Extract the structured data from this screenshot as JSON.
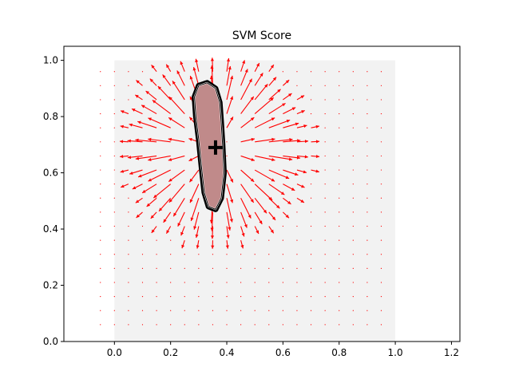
{
  "chart_data": {
    "type": "quiver",
    "title": "SVM Score",
    "xlabel": "",
    "ylabel": "",
    "xlim": [
      -0.18,
      1.23
    ],
    "ylim": [
      0.0,
      1.05
    ],
    "xticks": [
      "0.0",
      "0.2",
      "0.4",
      "0.6",
      "0.8",
      "1.0",
      "1.2"
    ],
    "yticks": [
      "0.0",
      "0.2",
      "0.4",
      "0.6",
      "0.8",
      "1.0"
    ],
    "xtick_values": [
      0.0,
      0.2,
      0.4,
      0.6,
      0.8,
      1.0,
      1.2
    ],
    "ytick_values": [
      0.0,
      0.2,
      0.4,
      0.6,
      0.8,
      1.0
    ],
    "grid": false,
    "background_region": {
      "x": [
        0.0,
        1.0
      ],
      "y": [
        0.0,
        1.0
      ],
      "color": "#f2f2f2"
    },
    "decision_region": {
      "fill": "#c08a8a",
      "boundary_color": "#000000",
      "outline": [
        [
          0.3,
          0.91
        ],
        [
          0.33,
          0.92
        ],
        [
          0.36,
          0.9
        ],
        [
          0.375,
          0.85
        ],
        [
          0.38,
          0.78
        ],
        [
          0.385,
          0.7
        ],
        [
          0.39,
          0.6
        ],
        [
          0.38,
          0.51
        ],
        [
          0.36,
          0.47
        ],
        [
          0.335,
          0.48
        ],
        [
          0.32,
          0.53
        ],
        [
          0.31,
          0.62
        ],
        [
          0.3,
          0.72
        ],
        [
          0.29,
          0.8
        ],
        [
          0.285,
          0.87
        ]
      ]
    },
    "centroid_marker": {
      "x": 0.36,
      "y": 0.69,
      "symbol": "+",
      "color": "#000000"
    },
    "vector_field": {
      "color": "#ff0000",
      "center": [
        0.36,
        0.69
      ],
      "x_range": [
        -0.05,
        0.98
      ],
      "y_range": [
        0.06,
        0.98
      ],
      "grid_step": 0.05,
      "active_radius": 0.35,
      "max_arrow_length": 0.09
    }
  }
}
